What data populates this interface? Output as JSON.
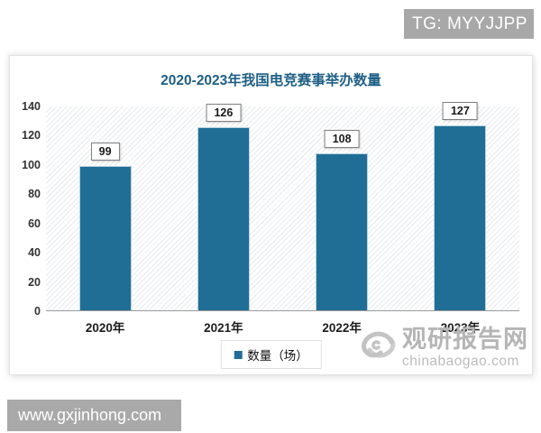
{
  "watermarks": {
    "telegram": "TG: MYYJJPP",
    "site": "www.gxjinhong.com",
    "brand_cn": "观研报告网",
    "brand_domain": "chinabaogao.com"
  },
  "chart_data": {
    "type": "bar",
    "title": "2020-2023年我国电竞赛事举办数量",
    "categories": [
      "2020年",
      "2021年",
      "2022年",
      "2023年"
    ],
    "series": [
      {
        "name": "数量（场）",
        "values": [
          99,
          126,
          108,
          127
        ]
      }
    ],
    "xlabel": "",
    "ylabel": "",
    "ylim": [
      0,
      140
    ],
    "yticks": [
      0,
      20,
      40,
      60,
      80,
      100,
      120,
      140
    ],
    "bar_color": "#206e96",
    "data_labels": true,
    "legend_position": "bottom",
    "grid": false
  },
  "colors": {
    "bar": "#206e96",
    "title": "#1f5f86",
    "badge_bg": "#a8a8a8",
    "watermark_gray": "#b5b5b5"
  }
}
